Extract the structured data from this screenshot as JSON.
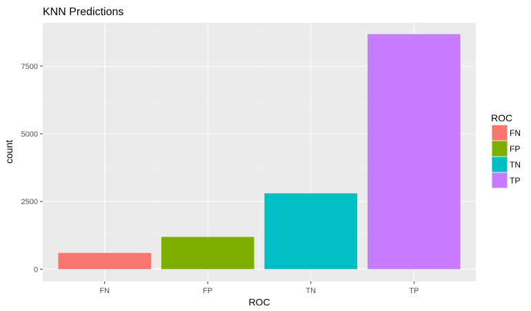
{
  "chart_data": {
    "type": "bar",
    "title": "KNN Predictions",
    "xlabel": "ROC",
    "ylabel": "count",
    "categories": [
      "FN",
      "FP",
      "TN",
      "TP"
    ],
    "values": [
      600,
      1190,
      2800,
      8680
    ],
    "colors": [
      "#F8766D",
      "#7CAE00",
      "#00BFC4",
      "#C77CFF"
    ],
    "ylim": [
      -450,
      9100
    ],
    "yticks": [
      0,
      2500,
      5000,
      7500
    ],
    "ytick_labels": [
      "0",
      "2500",
      "5000",
      "7500"
    ],
    "grid": true,
    "panel_background": "#EBEBEB",
    "legend": {
      "title": "ROC",
      "placement": "right",
      "items": [
        "FN",
        "FP",
        "TN",
        "TP"
      ]
    }
  }
}
